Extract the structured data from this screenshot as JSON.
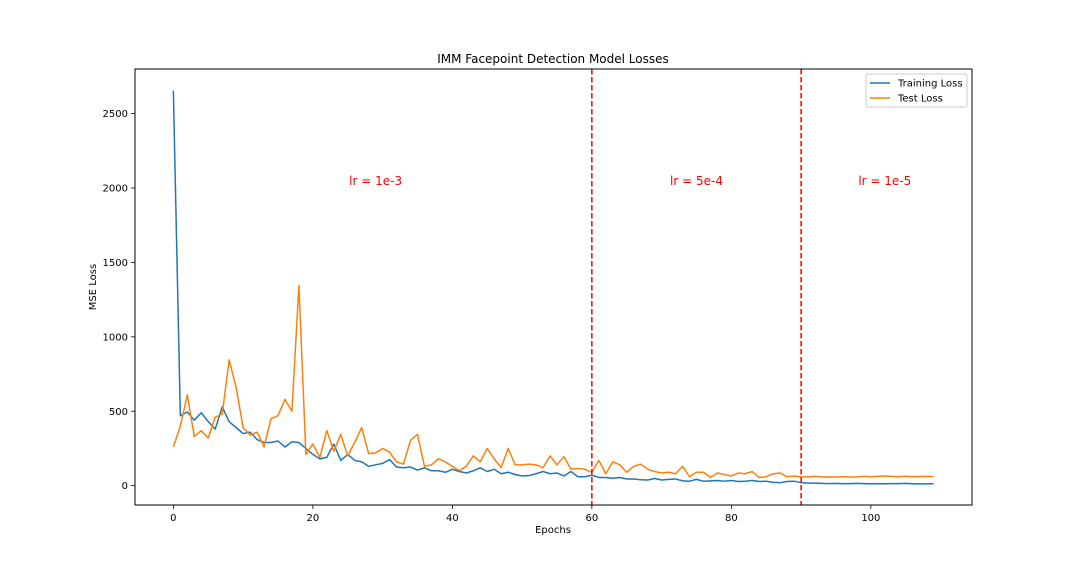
{
  "chart_data": {
    "type": "line",
    "title": "IMM Facepoint Detection Model Losses",
    "xlabel": "Epochs",
    "ylabel": "MSE Loss",
    "xlim": [
      -5.5,
      114.5
    ],
    "ylim": [
      -130,
      2800
    ],
    "xticks": [
      0,
      20,
      40,
      60,
      80,
      100
    ],
    "yticks": [
      0,
      500,
      1000,
      1500,
      2000,
      2500
    ],
    "grid": false,
    "legend_position": "top-right",
    "series": [
      {
        "name": "Training Loss",
        "color": "#1f77b4",
        "x_start": 0,
        "values": [
          2655,
          470,
          495,
          440,
          490,
          430,
          380,
          530,
          430,
          390,
          350,
          360,
          310,
          290,
          290,
          300,
          260,
          295,
          290,
          250,
          210,
          180,
          190,
          280,
          170,
          210,
          170,
          160,
          130,
          140,
          150,
          175,
          125,
          120,
          125,
          105,
          120,
          100,
          100,
          90,
          110,
          95,
          85,
          100,
          120,
          95,
          110,
          80,
          90,
          75,
          65,
          68,
          80,
          95,
          80,
          85,
          65,
          95,
          60,
          60,
          70,
          55,
          55,
          50,
          55,
          45,
          45,
          40,
          38,
          48,
          38,
          42,
          45,
          32,
          30,
          42,
          30,
          32,
          35,
          30,
          35,
          28,
          30,
          35,
          28,
          30,
          22,
          20,
          28,
          30,
          20,
          17,
          17,
          15,
          14,
          15,
          14,
          14,
          15,
          14,
          13,
          14,
          13,
          14,
          14,
          15,
          13,
          12,
          12,
          13
        ]
      },
      {
        "name": "Test Loss",
        "color": "#ff7f0e",
        "x_start": 0,
        "values": [
          260,
          400,
          610,
          330,
          370,
          320,
          460,
          480,
          845,
          660,
          390,
          340,
          360,
          260,
          450,
          470,
          580,
          500,
          1345,
          210,
          280,
          190,
          370,
          230,
          345,
          200,
          290,
          390,
          215,
          220,
          250,
          225,
          160,
          145,
          305,
          345,
          130,
          140,
          180,
          160,
          130,
          100,
          130,
          200,
          160,
          250,
          180,
          120,
          250,
          140,
          140,
          145,
          140,
          120,
          200,
          140,
          195,
          110,
          115,
          110,
          90,
          170,
          80,
          160,
          140,
          90,
          130,
          145,
          110,
          95,
          85,
          90,
          80,
          130,
          60,
          90,
          90,
          55,
          85,
          75,
          65,
          85,
          80,
          95,
          55,
          60,
          80,
          85,
          60,
          65,
          58,
          60,
          62,
          58,
          59,
          58,
          60,
          58,
          59,
          62,
          60,
          62,
          65,
          62,
          60,
          63,
          60,
          61,
          62,
          61
        ]
      }
    ],
    "vlines": [
      {
        "x": 60,
        "color": "#ff0000",
        "style": "dashed"
      },
      {
        "x": 90,
        "color": "#ff0000",
        "style": "dashed"
      }
    ],
    "annotations": [
      {
        "text": "lr = 1e-3",
        "x": 29,
        "y": 2020,
        "color": "#ff0000"
      },
      {
        "text": "lr = 5e-4",
        "x": 75,
        "y": 2020,
        "color": "#ff0000"
      },
      {
        "text": "lr = 1e-5",
        "x": 102,
        "y": 2020,
        "color": "#ff0000"
      }
    ]
  }
}
